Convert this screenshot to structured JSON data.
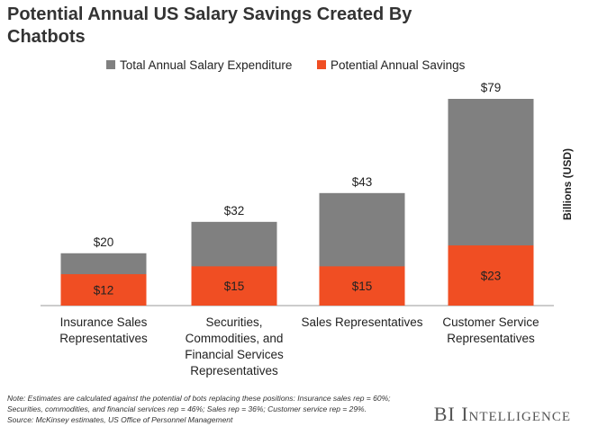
{
  "chart_data": {
    "type": "overlap-bar",
    "title": "Potential Annual US Salary Savings Created By Chatbots",
    "y_label": "Billions (USD)",
    "categories": [
      "Insurance Sales Representatives",
      "Securities, Commodities, and Financial Services Representatives",
      "Sales Representatives",
      "Customer Service Representatives"
    ],
    "series": [
      {
        "name": "Total Annual Salary Expenditure",
        "color": "#808080",
        "values": [
          20,
          32,
          43,
          79
        ],
        "value_labels": [
          "$20",
          "$32",
          "$43",
          "$79"
        ]
      },
      {
        "name": "Potential Annual Savings",
        "color": "#f04e23",
        "values": [
          12,
          15,
          15,
          23
        ],
        "value_labels": [
          "$12",
          "$15",
          "$15",
          "$23"
        ]
      }
    ],
    "legend": "top",
    "note": [
      "Note: Estimates are calculated against the potential of bots replacing these positions: Insurance sales rep = 60%;",
      "Securities, commodities, and financial services rep = 46%; Sales rep = 36%; Customer service rep = 29%.",
      "Source: McKinsey estimates, US Office of Personnel Management"
    ],
    "brand": "BI Intelligence"
  }
}
